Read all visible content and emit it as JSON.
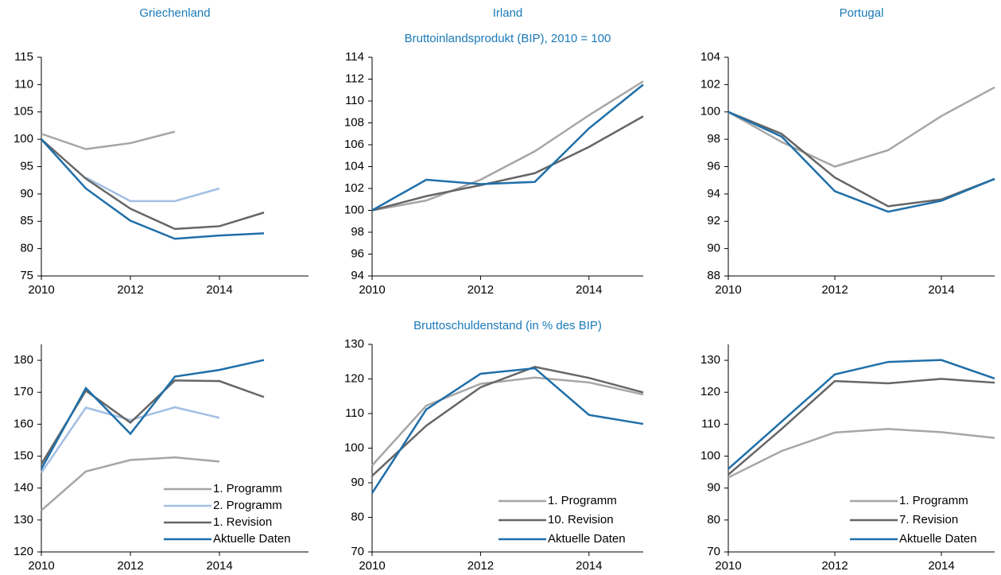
{
  "chart_data": [
    {
      "type": "line",
      "title": "Griechenland",
      "x": [
        2010,
        2011,
        2012,
        2013,
        2014,
        2015
      ],
      "xlim": [
        2010,
        2016
      ],
      "xticks": [
        2010,
        2012,
        2014
      ],
      "ylim": [
        75,
        115
      ],
      "yticks": [
        75,
        80,
        85,
        90,
        95,
        100,
        105,
        110,
        115
      ],
      "series": [
        {
          "color": "#a6a6a6",
          "values": [
            101,
            98.2,
            99.3,
            101.4,
            null,
            null
          ]
        },
        {
          "color": "#a3bfe3",
          "values": [
            null,
            93,
            88.7,
            88.7,
            91,
            null
          ]
        },
        {
          "color": "#666666",
          "values": [
            100,
            92.8,
            87.3,
            83.6,
            84.1,
            86.6
          ]
        },
        {
          "color": "#1f6fa9",
          "values": [
            100,
            91,
            85.1,
            81.8,
            82.4,
            82.8
          ]
        }
      ]
    },
    {
      "type": "line",
      "title": "Irland",
      "subtitle": "Bruttoinlandsprodukt (BIP), 2010 = 100",
      "x": [
        2010,
        2011,
        2012,
        2013,
        2014,
        2015
      ],
      "xlim": [
        2010,
        2015
      ],
      "xticks": [
        2010,
        2012,
        2014
      ],
      "ylim": [
        94,
        114
      ],
      "yticks": [
        94,
        96,
        98,
        100,
        102,
        104,
        106,
        108,
        110,
        112,
        114
      ],
      "series": [
        {
          "color": "#a6a6a6",
          "values": [
            100,
            100.9,
            102.8,
            105.4,
            108.7,
            111.8
          ]
        },
        {
          "color": "#666666",
          "values": [
            100,
            101.3,
            102.3,
            103.4,
            105.8,
            108.6
          ]
        },
        {
          "color": "#1f6fa9",
          "values": [
            100,
            102.8,
            102.4,
            102.6,
            107.5,
            111.5
          ]
        }
      ]
    },
    {
      "type": "line",
      "title": "Portugal",
      "x": [
        2010,
        2011,
        2012,
        2013,
        2014,
        2015
      ],
      "xlim": [
        2010,
        2015
      ],
      "xticks": [
        2010,
        2012,
        2014
      ],
      "ylim": [
        88,
        104
      ],
      "yticks": [
        88,
        90,
        92,
        94,
        96,
        98,
        100,
        102,
        104
      ],
      "series": [
        {
          "color": "#a6a6a6",
          "values": [
            100,
            97.8,
            96,
            97.2,
            99.7,
            101.8
          ]
        },
        {
          "color": "#666666",
          "values": [
            100,
            98.4,
            95.2,
            93.1,
            93.6,
            95.1
          ]
        },
        {
          "color": "#1f6fa9",
          "values": [
            100,
            98.2,
            94.2,
            92.7,
            93.5,
            95.1
          ]
        }
      ]
    },
    {
      "type": "line",
      "x": [
        2010,
        2011,
        2012,
        2013,
        2014,
        2015
      ],
      "xlim": [
        2010,
        2016
      ],
      "xticks": [
        2010,
        2012,
        2014
      ],
      "ylim": [
        120,
        185
      ],
      "yticks": [
        120,
        130,
        140,
        150,
        160,
        170,
        180
      ],
      "legend": "lower right",
      "series": [
        {
          "name": "1. Programm",
          "color": "#a6a6a6",
          "values": [
            133,
            145.2,
            148.8,
            149.6,
            148.3,
            null
          ]
        },
        {
          "name": "2. Programm",
          "color": "#a3bfe3",
          "values": [
            144.8,
            165.2,
            161.3,
            165.3,
            162,
            null
          ]
        },
        {
          "name": "1. Revision",
          "color": "#666666",
          "values": [
            147.5,
            170.5,
            160.5,
            173.7,
            173.5,
            168.5
          ]
        },
        {
          "name": "Aktuelle Daten",
          "color": "#1f6fa9",
          "values": [
            146,
            171.3,
            157,
            174.9,
            177,
            180.1
          ]
        }
      ]
    },
    {
      "type": "line",
      "subtitle": "Bruttoschuldenstand (in % des BIP)",
      "x": [
        2010,
        2011,
        2012,
        2013,
        2014,
        2015
      ],
      "xlim": [
        2010,
        2015
      ],
      "xticks": [
        2010,
        2012,
        2014
      ],
      "ylim": [
        70,
        130
      ],
      "yticks": [
        70,
        80,
        90,
        100,
        110,
        120,
        130
      ],
      "legend": "lower right",
      "series": [
        {
          "name": "1. Programm",
          "color": "#a6a6a6",
          "values": [
            95,
            112.3,
            118.6,
            120.4,
            119,
            115.5
          ]
        },
        {
          "name": "10. Revision",
          "color": "#666666",
          "values": [
            92,
            106.5,
            117.6,
            123.5,
            120.3,
            116.1
          ]
        },
        {
          "name": "Aktuelle Daten",
          "color": "#1f6fa9",
          "values": [
            87,
            111.2,
            121.5,
            123.1,
            109.6,
            107
          ]
        }
      ]
    },
    {
      "type": "line",
      "x": [
        2010,
        2011,
        2012,
        2013,
        2014,
        2015
      ],
      "xlim": [
        2010,
        2015
      ],
      "xticks": [
        2010,
        2012,
        2014
      ],
      "ylim": [
        70,
        135
      ],
      "yticks": [
        70,
        80,
        90,
        100,
        110,
        120,
        130
      ],
      "legend": "lower right",
      "series": [
        {
          "name": "1. Programm",
          "color": "#a6a6a6",
          "values": [
            93.3,
            101.6,
            107.4,
            108.5,
            107.5,
            105.7
          ]
        },
        {
          "name": "7. Revision",
          "color": "#666666",
          "values": [
            94.2,
            108.5,
            123.5,
            122.8,
            124.2,
            123
          ]
        },
        {
          "name": "Aktuelle Daten",
          "color": "#1f6fa9",
          "values": [
            96,
            110.8,
            125.6,
            129.5,
            130.1,
            124.3
          ]
        }
      ]
    }
  ]
}
